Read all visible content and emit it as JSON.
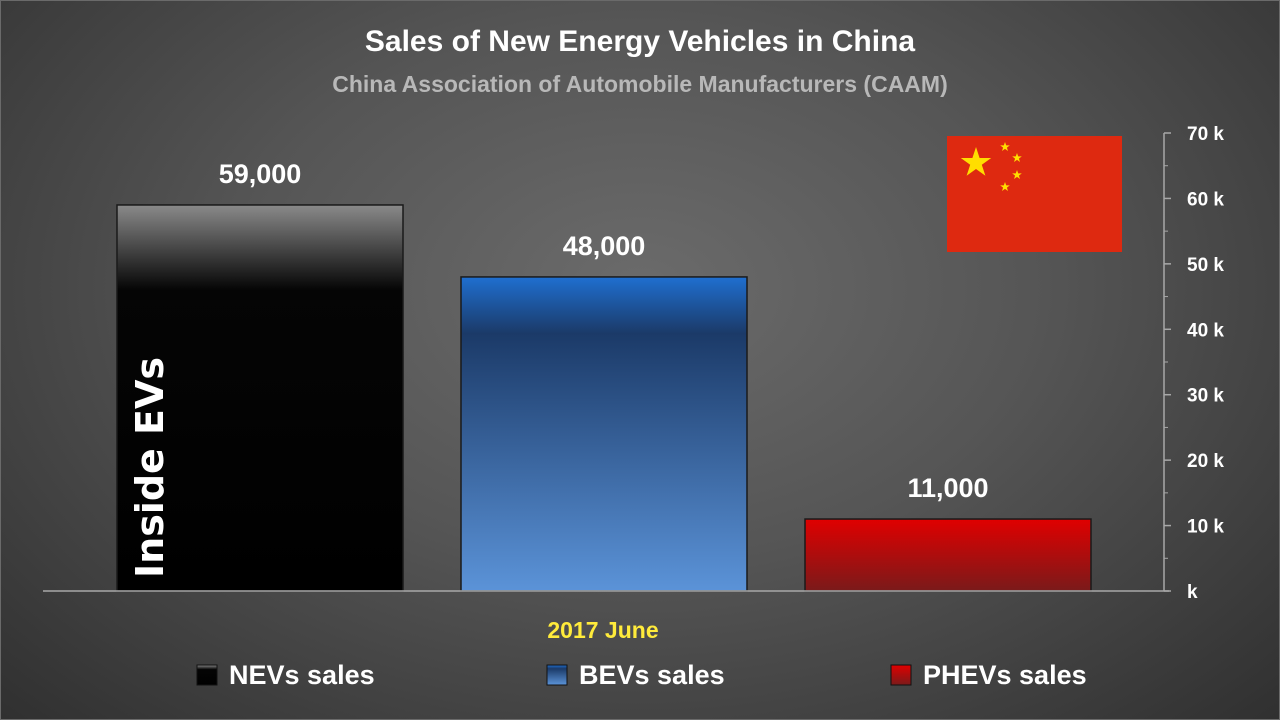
{
  "chart_data": {
    "type": "bar",
    "title": "Sales of New Energy Vehicles in China",
    "subtitle": "China Association of Automobile Manufacturers (CAAM)",
    "categories": [
      "2017 June"
    ],
    "series": [
      {
        "name": "NEVs sales",
        "values": [
          59000
        ],
        "label": "59,000",
        "color": "#111111"
      },
      {
        "name": "BEVs sales",
        "values": [
          48000
        ],
        "label": "48,000",
        "color": "#2f65a8"
      },
      {
        "name": "PHEVs sales",
        "values": [
          11000
        ],
        "label": "11,000",
        "color": "#b80c0c"
      }
    ],
    "y_axis": {
      "position": "right",
      "ylim": [
        0,
        70000
      ],
      "ticks": [
        0,
        10000,
        20000,
        30000,
        40000,
        50000,
        60000,
        70000
      ],
      "tick_labels": [
        "k",
        "10 k",
        "20 k",
        "30 k",
        "40 k",
        "50 k",
        "60 k",
        "70 k"
      ]
    },
    "legend": {
      "position": "bottom"
    },
    "grid": false
  },
  "watermark": "Inside EVs",
  "flag": {
    "name": "china-flag",
    "colors": {
      "field": "#de2910",
      "stars": "#ffde00"
    }
  }
}
